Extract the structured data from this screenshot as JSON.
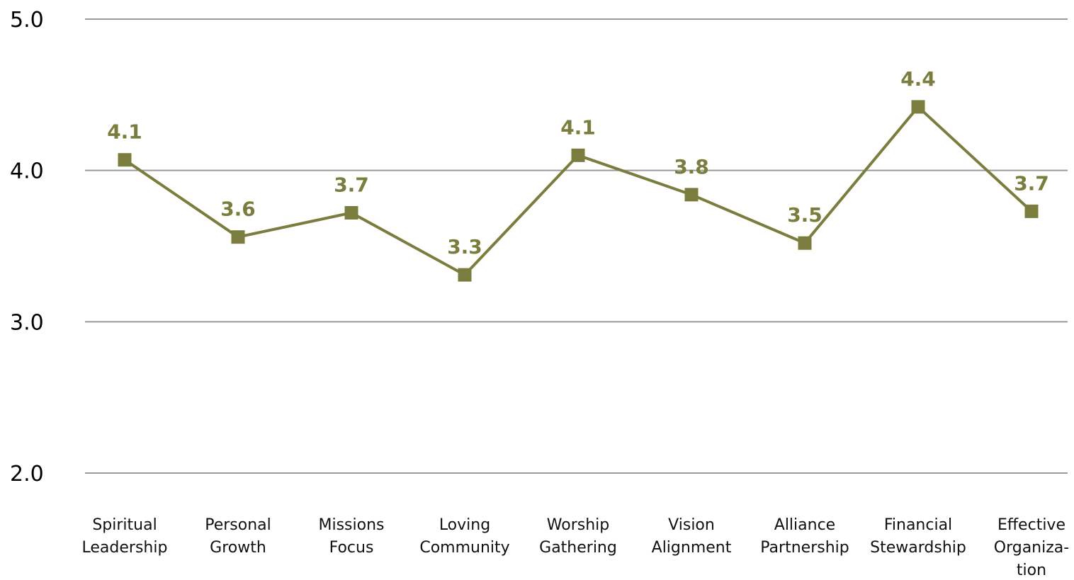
{
  "chart_data": {
    "type": "line",
    "categories": [
      [
        "Spiritual",
        "Leadership"
      ],
      [
        "Personal",
        "Growth"
      ],
      [
        "Missions",
        "Focus"
      ],
      [
        "Loving",
        "Community"
      ],
      [
        "Worship",
        "Gathering"
      ],
      [
        "Vision",
        "Alignment"
      ],
      [
        "Alliance",
        "Partnership"
      ],
      [
        "Financial",
        "Stewardship"
      ],
      [
        "Effective",
        "Organiza-",
        "tion"
      ]
    ],
    "series": [
      {
        "values": [
          4.07,
          3.56,
          3.72,
          3.31,
          4.1,
          3.84,
          3.52,
          4.42,
          3.73
        ],
        "data_labels": [
          "4.1",
          "3.6",
          "3.7",
          "3.3",
          "4.1",
          "3.8",
          "3.5",
          "4.4",
          "3.7"
        ]
      }
    ],
    "yticks": [
      "2.0",
      "3.0",
      "4.0",
      "5.0"
    ],
    "ylim": [
      2.0,
      5.0
    ],
    "grid": true,
    "colors": {
      "series": "#7a7d3e",
      "grid": "#9a9a9a",
      "text": "#000000"
    },
    "marker": "square"
  }
}
